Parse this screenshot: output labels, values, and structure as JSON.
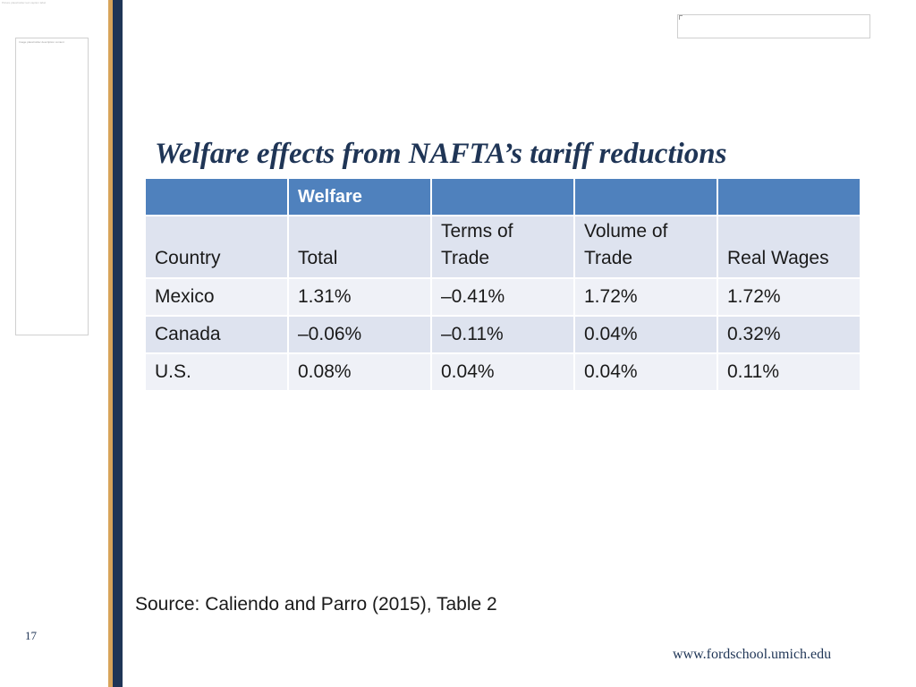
{
  "slide": {
    "title": "Welfare effects from NAFTA’s tariff reductions",
    "number": "17",
    "url": "www.fordschool.umich.edu",
    "source": "Source:  Caliendo and Parro (2015), Table 2",
    "tiny_caption": "Picture placeholder text caption label",
    "left_box_text": "Image placeholder description content"
  },
  "table": {
    "group_header": "Welfare",
    "columns": {
      "country": "Country",
      "total": "Total",
      "terms_line1": "Terms of",
      "terms_line2": "Trade",
      "volume_line1": "Volume of",
      "volume_line2": "Trade",
      "real_wages": "Real Wages"
    },
    "rows": [
      {
        "country": "Mexico",
        "total": "1.31%",
        "terms": "–0.41%",
        "volume": "1.72%",
        "real_wages": "1.72%"
      },
      {
        "country": "Canada",
        "total": "–0.06%",
        "terms": "–0.11%",
        "volume": "0.04%",
        "real_wages": "0.32%"
      },
      {
        "country": "U.S.",
        "total": "0.08%",
        "terms": "0.04%",
        "volume": "0.04%",
        "real_wages": "0.11%"
      }
    ]
  },
  "colors": {
    "header_blue": "#4f81bd",
    "navy": "#1f3556",
    "gold": "#d8a45a",
    "row_dark": "#dee3ef",
    "row_light": "#eff1f7"
  }
}
